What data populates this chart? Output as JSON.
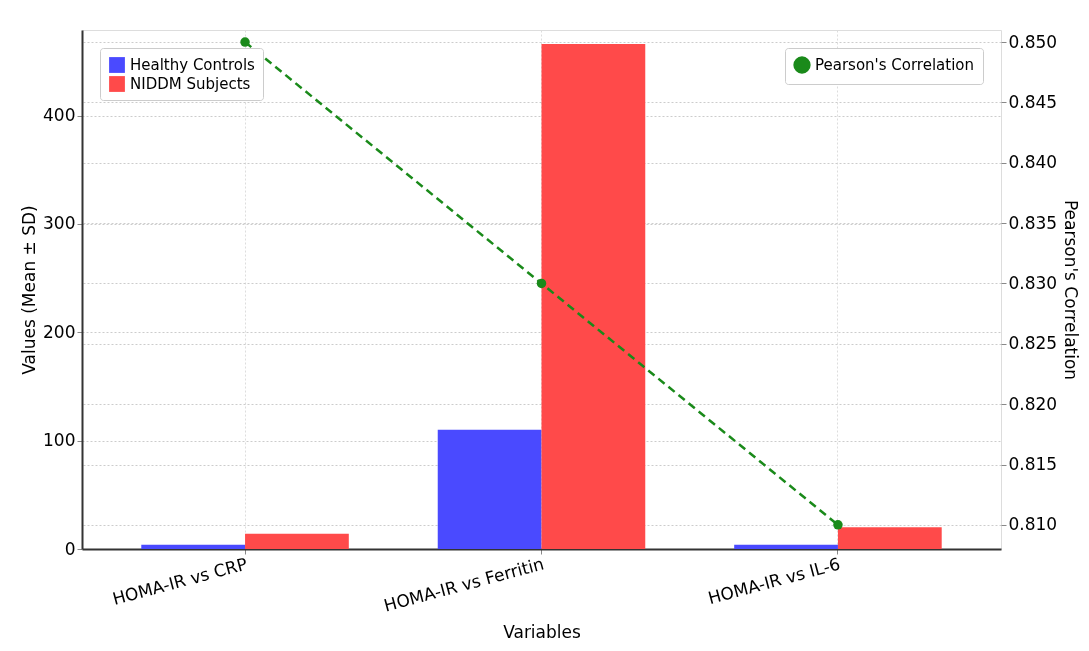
{
  "chart_data": {
    "type": "bar",
    "xlabel": "Variables",
    "ylabel": "Values (Mean ± SD)",
    "y2label": "Pearson's Correlation",
    "categories": [
      "HOMA-IR vs CRP",
      "HOMA-IR vs Ferritin",
      "HOMA-IR vs IL-6"
    ],
    "series": [
      {
        "name": "Healthy Controls",
        "color": "#4a4aff",
        "values": [
          4,
          110,
          4
        ]
      },
      {
        "name": "NIDDM Subjects",
        "color": "#ff4a4a",
        "values": [
          14,
          466,
          20
        ]
      },
      {
        "name": "Pearson's Correlation",
        "type": "line",
        "axis": "y2",
        "color": "#1a8a1a",
        "marker": "circle",
        "line_style": "dashed",
        "values": [
          0.85,
          0.83,
          0.81
        ]
      }
    ],
    "ylim": [
      0,
      479
    ],
    "yticks": [
      0,
      100,
      200,
      300,
      400
    ],
    "y2lim": [
      0.808,
      0.851
    ],
    "y2ticks": [
      {
        "value": 0.81,
        "label": "0.810"
      },
      {
        "value": 0.815,
        "label": "0.815"
      },
      {
        "value": 0.82,
        "label": "0.820"
      },
      {
        "value": 0.825,
        "label": "0.825"
      },
      {
        "value": 0.83,
        "label": "0.830"
      },
      {
        "value": 0.835,
        "label": "0.835"
      },
      {
        "value": 0.84,
        "label": "0.840"
      },
      {
        "value": 0.845,
        "label": "0.845"
      },
      {
        "value": 0.85,
        "label": "0.850"
      }
    ],
    "grid": true,
    "legend": "top left"
  }
}
